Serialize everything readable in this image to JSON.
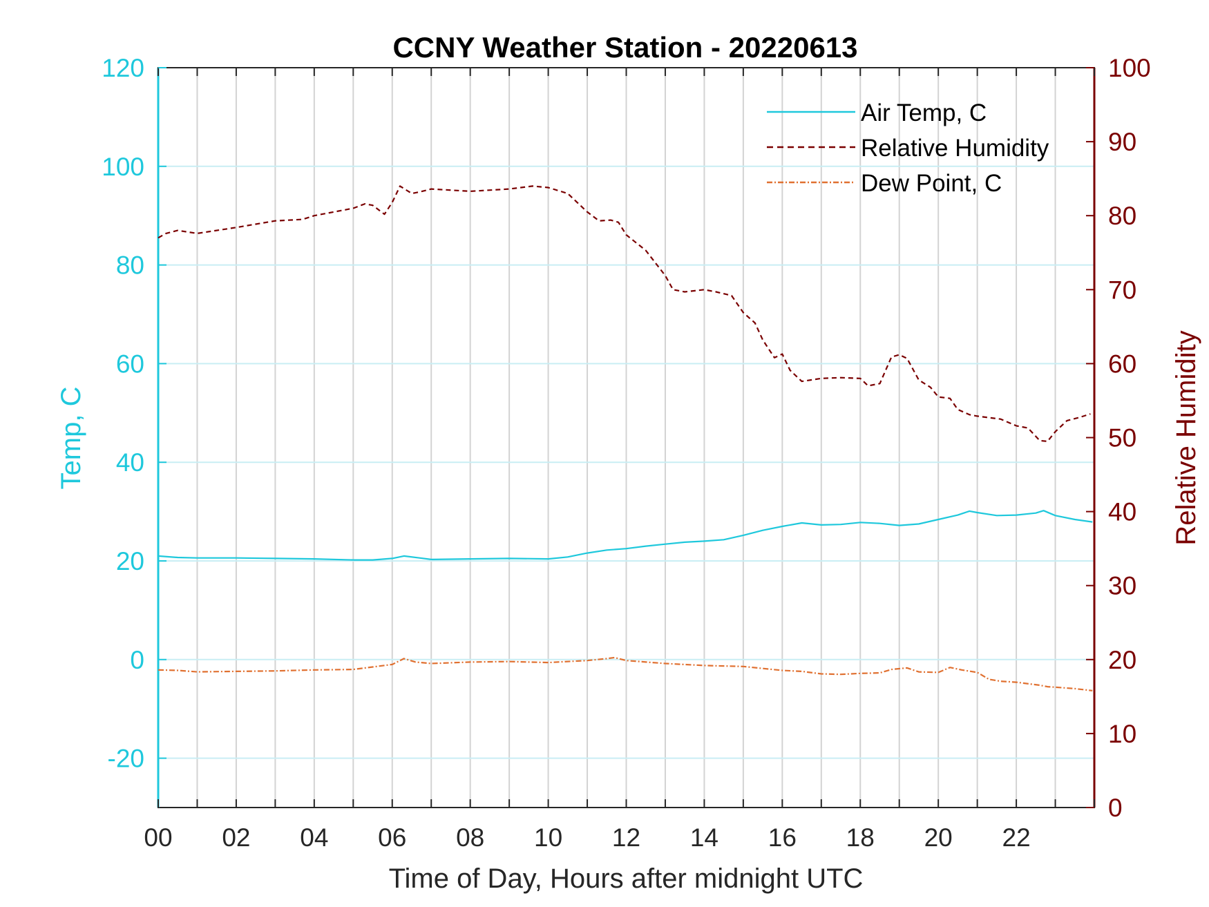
{
  "chart_data": {
    "type": "line",
    "title": "CCNY Weather Station - 20220613",
    "xlabel": "Time of Day, Hours after midnight UTC",
    "ylabel_left": "Temp, C",
    "ylabel_right": "Relative Humidity",
    "xlim": [
      0,
      24
    ],
    "ylim_left": [
      -30,
      120
    ],
    "ylim_right": [
      0,
      100
    ],
    "x_ticks": [
      0,
      2,
      4,
      6,
      8,
      10,
      12,
      14,
      16,
      18,
      20,
      22
    ],
    "x_tick_labels": [
      "00",
      "02",
      "04",
      "06",
      "08",
      "10",
      "12",
      "14",
      "16",
      "18",
      "20",
      "22"
    ],
    "y_left_ticks": [
      -20,
      0,
      20,
      40,
      60,
      80,
      100,
      120
    ],
    "y_left_tick_labels": [
      "-20",
      "0",
      "20",
      "40",
      "60",
      "80",
      "100",
      "120"
    ],
    "y_right_ticks": [
      0,
      10,
      20,
      30,
      40,
      50,
      60,
      70,
      80,
      90,
      100
    ],
    "y_right_tick_labels": [
      "0",
      "10",
      "20",
      "30",
      "40",
      "50",
      "60",
      "70",
      "80",
      "90",
      "100"
    ],
    "grid": true,
    "legend_position": "top-right",
    "colors": {
      "left_axis": "#1ec8dc",
      "right_axis": "#7a0000",
      "air_temp": "#1ec8dc",
      "relative_humidity": "#7a0000",
      "dew_point": "#e07030",
      "grid_vertical": "#d3d3d3",
      "grid_horizontal": "#c9eef4"
    },
    "series": [
      {
        "name": "Air Temp, C",
        "axis": "left",
        "style": "solid",
        "x": [
          0,
          0.5,
          1,
          2,
          3,
          4,
          5,
          5.5,
          6,
          6.3,
          6.7,
          7,
          8,
          9,
          10,
          10.5,
          11,
          11.5,
          12,
          12.5,
          13,
          13.5,
          14,
          14.5,
          15,
          15.5,
          16,
          16.5,
          17,
          17.5,
          18,
          18.5,
          19,
          19.5,
          20,
          20.5,
          20.8,
          21,
          21.5,
          22,
          22.5,
          22.7,
          23,
          23.5,
          23.95
        ],
        "values": [
          21,
          20.7,
          20.6,
          20.6,
          20.5,
          20.4,
          20.2,
          20.2,
          20.5,
          21,
          20.6,
          20.3,
          20.4,
          20.5,
          20.4,
          20.8,
          21.6,
          22.2,
          22.5,
          23,
          23.4,
          23.8,
          24,
          24.3,
          25.2,
          26.2,
          27,
          27.7,
          27.3,
          27.4,
          27.8,
          27.6,
          27.2,
          27.5,
          28.4,
          29.3,
          30.1,
          29.8,
          29.2,
          29.3,
          29.7,
          30.2,
          29.2,
          28.4,
          27.9
        ]
      },
      {
        "name": "Relative Humidity",
        "axis": "right",
        "style": "dashed",
        "x": [
          0,
          0.2,
          0.5,
          1,
          2,
          3,
          3.7,
          4,
          5,
          5.3,
          5.5,
          5.7,
          5.8,
          6,
          6.2,
          6.5,
          6.7,
          7,
          8,
          9,
          9.6,
          10,
          10.5,
          11,
          11.3,
          11.6,
          11.8,
          12,
          12.5,
          13,
          13.2,
          13.5,
          14,
          14.3,
          14.7,
          15,
          15.3,
          15.5,
          15.8,
          16,
          16.2,
          16.5,
          17,
          17.5,
          18,
          18.2,
          18.5,
          18.8,
          19,
          19.2,
          19.5,
          19.8,
          20,
          20.3,
          20.5,
          20.8,
          21,
          21.3,
          21.6,
          22,
          22.3,
          22.6,
          22.8,
          23,
          23.3,
          23.6,
          23.9
        ],
        "values": [
          77,
          77.6,
          78,
          77.6,
          78.4,
          79.3,
          79.5,
          80,
          81,
          81.6,
          81.4,
          80.6,
          80.2,
          81.8,
          84,
          83,
          83.2,
          83.6,
          83.3,
          83.6,
          84,
          83.8,
          83,
          80.5,
          79.3,
          79.4,
          79.1,
          77.4,
          75.3,
          71.9,
          70,
          69.7,
          70,
          69.7,
          69.2,
          66.9,
          65.5,
          63.2,
          60.8,
          61.3,
          59.1,
          57.6,
          58,
          58.1,
          58,
          57,
          57.3,
          60.9,
          61.2,
          60.7,
          57.8,
          56.8,
          55.5,
          55.3,
          53.8,
          53.1,
          52.9,
          52.7,
          52.5,
          51.6,
          51.3,
          49.6,
          49.5,
          50.8,
          52.3,
          52.7,
          53.2
        ]
      },
      {
        "name": "Dew Point, C",
        "axis": "left",
        "style": "dash-dot",
        "x": [
          0,
          0.5,
          1,
          2,
          3,
          4,
          5,
          5.5,
          6,
          6.3,
          6.6,
          7,
          8,
          9,
          10,
          11,
          11.5,
          11.7,
          12,
          13,
          14,
          15,
          15.5,
          16,
          16.5,
          17,
          17.5,
          18,
          18.5,
          18.8,
          19.2,
          19.5,
          20,
          20.3,
          20.6,
          21,
          21.3,
          21.6,
          22,
          22.4,
          22.6,
          22.8,
          23,
          23.5,
          23.95
        ],
        "values": [
          -2.1,
          -2.2,
          -2.5,
          -2.4,
          -2.3,
          -2.1,
          -2,
          -1.5,
          -1,
          0.2,
          -0.5,
          -0.8,
          -0.5,
          -0.4,
          -0.6,
          -0.2,
          0.2,
          0.4,
          -0.2,
          -0.8,
          -1.2,
          -1.4,
          -1.8,
          -2.2,
          -2.4,
          -2.9,
          -3,
          -2.8,
          -2.7,
          -2,
          -1.7,
          -2.5,
          -2.6,
          -1.6,
          -2.1,
          -2.6,
          -4,
          -4.4,
          -4.6,
          -5,
          -5.2,
          -5.5,
          -5.6,
          -5.9,
          -6.3
        ]
      }
    ]
  }
}
